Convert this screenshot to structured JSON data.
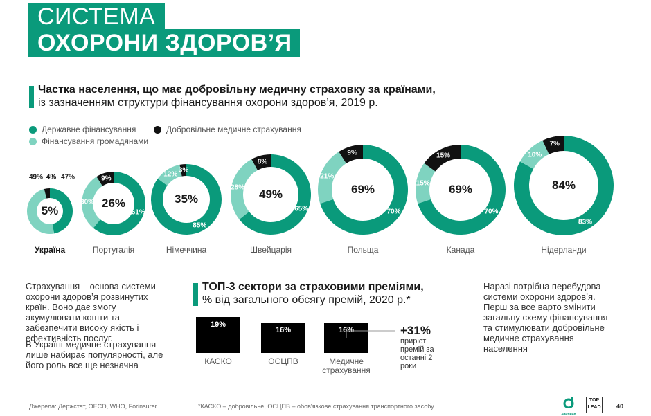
{
  "header": {
    "title_line1": "СИСТЕМА",
    "title_line2": "ОХОРОНИ ЗДОРОВ’Я"
  },
  "chart_section": {
    "heading_bold": "Частка населення, що має добровільну медичну страховку за країнами,",
    "heading_regular": "із зазначенням структури фінансування охорони здоров’я, 2019 р.",
    "legend": [
      {
        "label": "Державне фінансування",
        "color": "#0a9a7b"
      },
      {
        "label": "Фінансування громадянами",
        "color": "#7fd3c0"
      },
      {
        "label": "Добровільне медичне страхування",
        "color": "#111111"
      }
    ]
  },
  "chart_data": {
    "type": "pie",
    "colors": {
      "state": "#0a9a7b",
      "citizens": "#7fd3c0",
      "voluntary": "#111111"
    },
    "countries": [
      {
        "name": "Україна",
        "insured": "5%",
        "state": 47,
        "citizens": 49,
        "voluntary": 4,
        "state_label": "47%",
        "citizens_label": "49%",
        "voluntary_label": "4%"
      },
      {
        "name": "Португалія",
        "insured": "26%",
        "state": 61,
        "citizens": 30,
        "voluntary": 9,
        "state_label": "61%",
        "citizens_label": "30%",
        "voluntary_label": "9%"
      },
      {
        "name": "Німеччина",
        "insured": "35%",
        "state": 85,
        "citizens": 12,
        "voluntary": 3,
        "state_label": "85%",
        "citizens_label": "12%",
        "voluntary_label": "3%"
      },
      {
        "name": "Швейцарія",
        "insured": "49%",
        "state": 65,
        "citizens": 28,
        "voluntary": 8,
        "state_label": "65%",
        "citizens_label": "28%",
        "voluntary_label": "8%"
      },
      {
        "name": "Польща",
        "insured": "69%",
        "state": 70,
        "citizens": 21,
        "voluntary": 9,
        "state_label": "70%",
        "citizens_label": "21%",
        "voluntary_label": "9%"
      },
      {
        "name": "Канада",
        "insured": "69%",
        "state": 70,
        "citizens": 15,
        "voluntary": 15,
        "state_label": "70%",
        "citizens_label": "15%",
        "voluntary_label": "15%"
      },
      {
        "name": "Нідерланди",
        "insured": "84%",
        "state": 83,
        "citizens": 10,
        "voluntary": 7,
        "state_label": "83%",
        "citizens_label": "10%",
        "voluntary_label": "7%"
      }
    ]
  },
  "left_text": {
    "para1": "Страхування – основа системи охорони здоров’я розвинутих країн. Воно дає змогу акумулювати кошти та забезпечити високу якість і ефективність послуг.",
    "para2": "В Україні медичне страхування лише набирає популярності, але його роль все ще незначна"
  },
  "sectors": {
    "heading_bold": "ТОП-3 сектори за страховими преміями,",
    "heading_regular": "% від загального обсягу премій, 2020 р.*",
    "bars": [
      {
        "label": "КАСКО",
        "value": 19,
        "value_label": "19%"
      },
      {
        "label": "ОСЦПВ",
        "value": 16,
        "value_label": "16%"
      },
      {
        "label": "Медичне страхування",
        "value": 16,
        "value_label": "16%"
      }
    ],
    "growth_value": "+31%",
    "growth_text": "приріст премій за останні 2 роки"
  },
  "right_text": "Наразі потрібна перебудова системи охорони здоров’я. Перш за все варто змінити загальну схему фінансування та стимулювати добровільне медичне страхування населення",
  "footer": {
    "sources": "Джерела: Держстат, OECD, WHO, Forinsurer",
    "note": "*КАСКО – добровільне, ОСЦПВ – обов'язкове страхування транспортного засобу",
    "page_number": "40",
    "logo_darnitsa": "дарниця",
    "logo_toplead_1": "TOP",
    "logo_toplead_2": "LEAD"
  }
}
